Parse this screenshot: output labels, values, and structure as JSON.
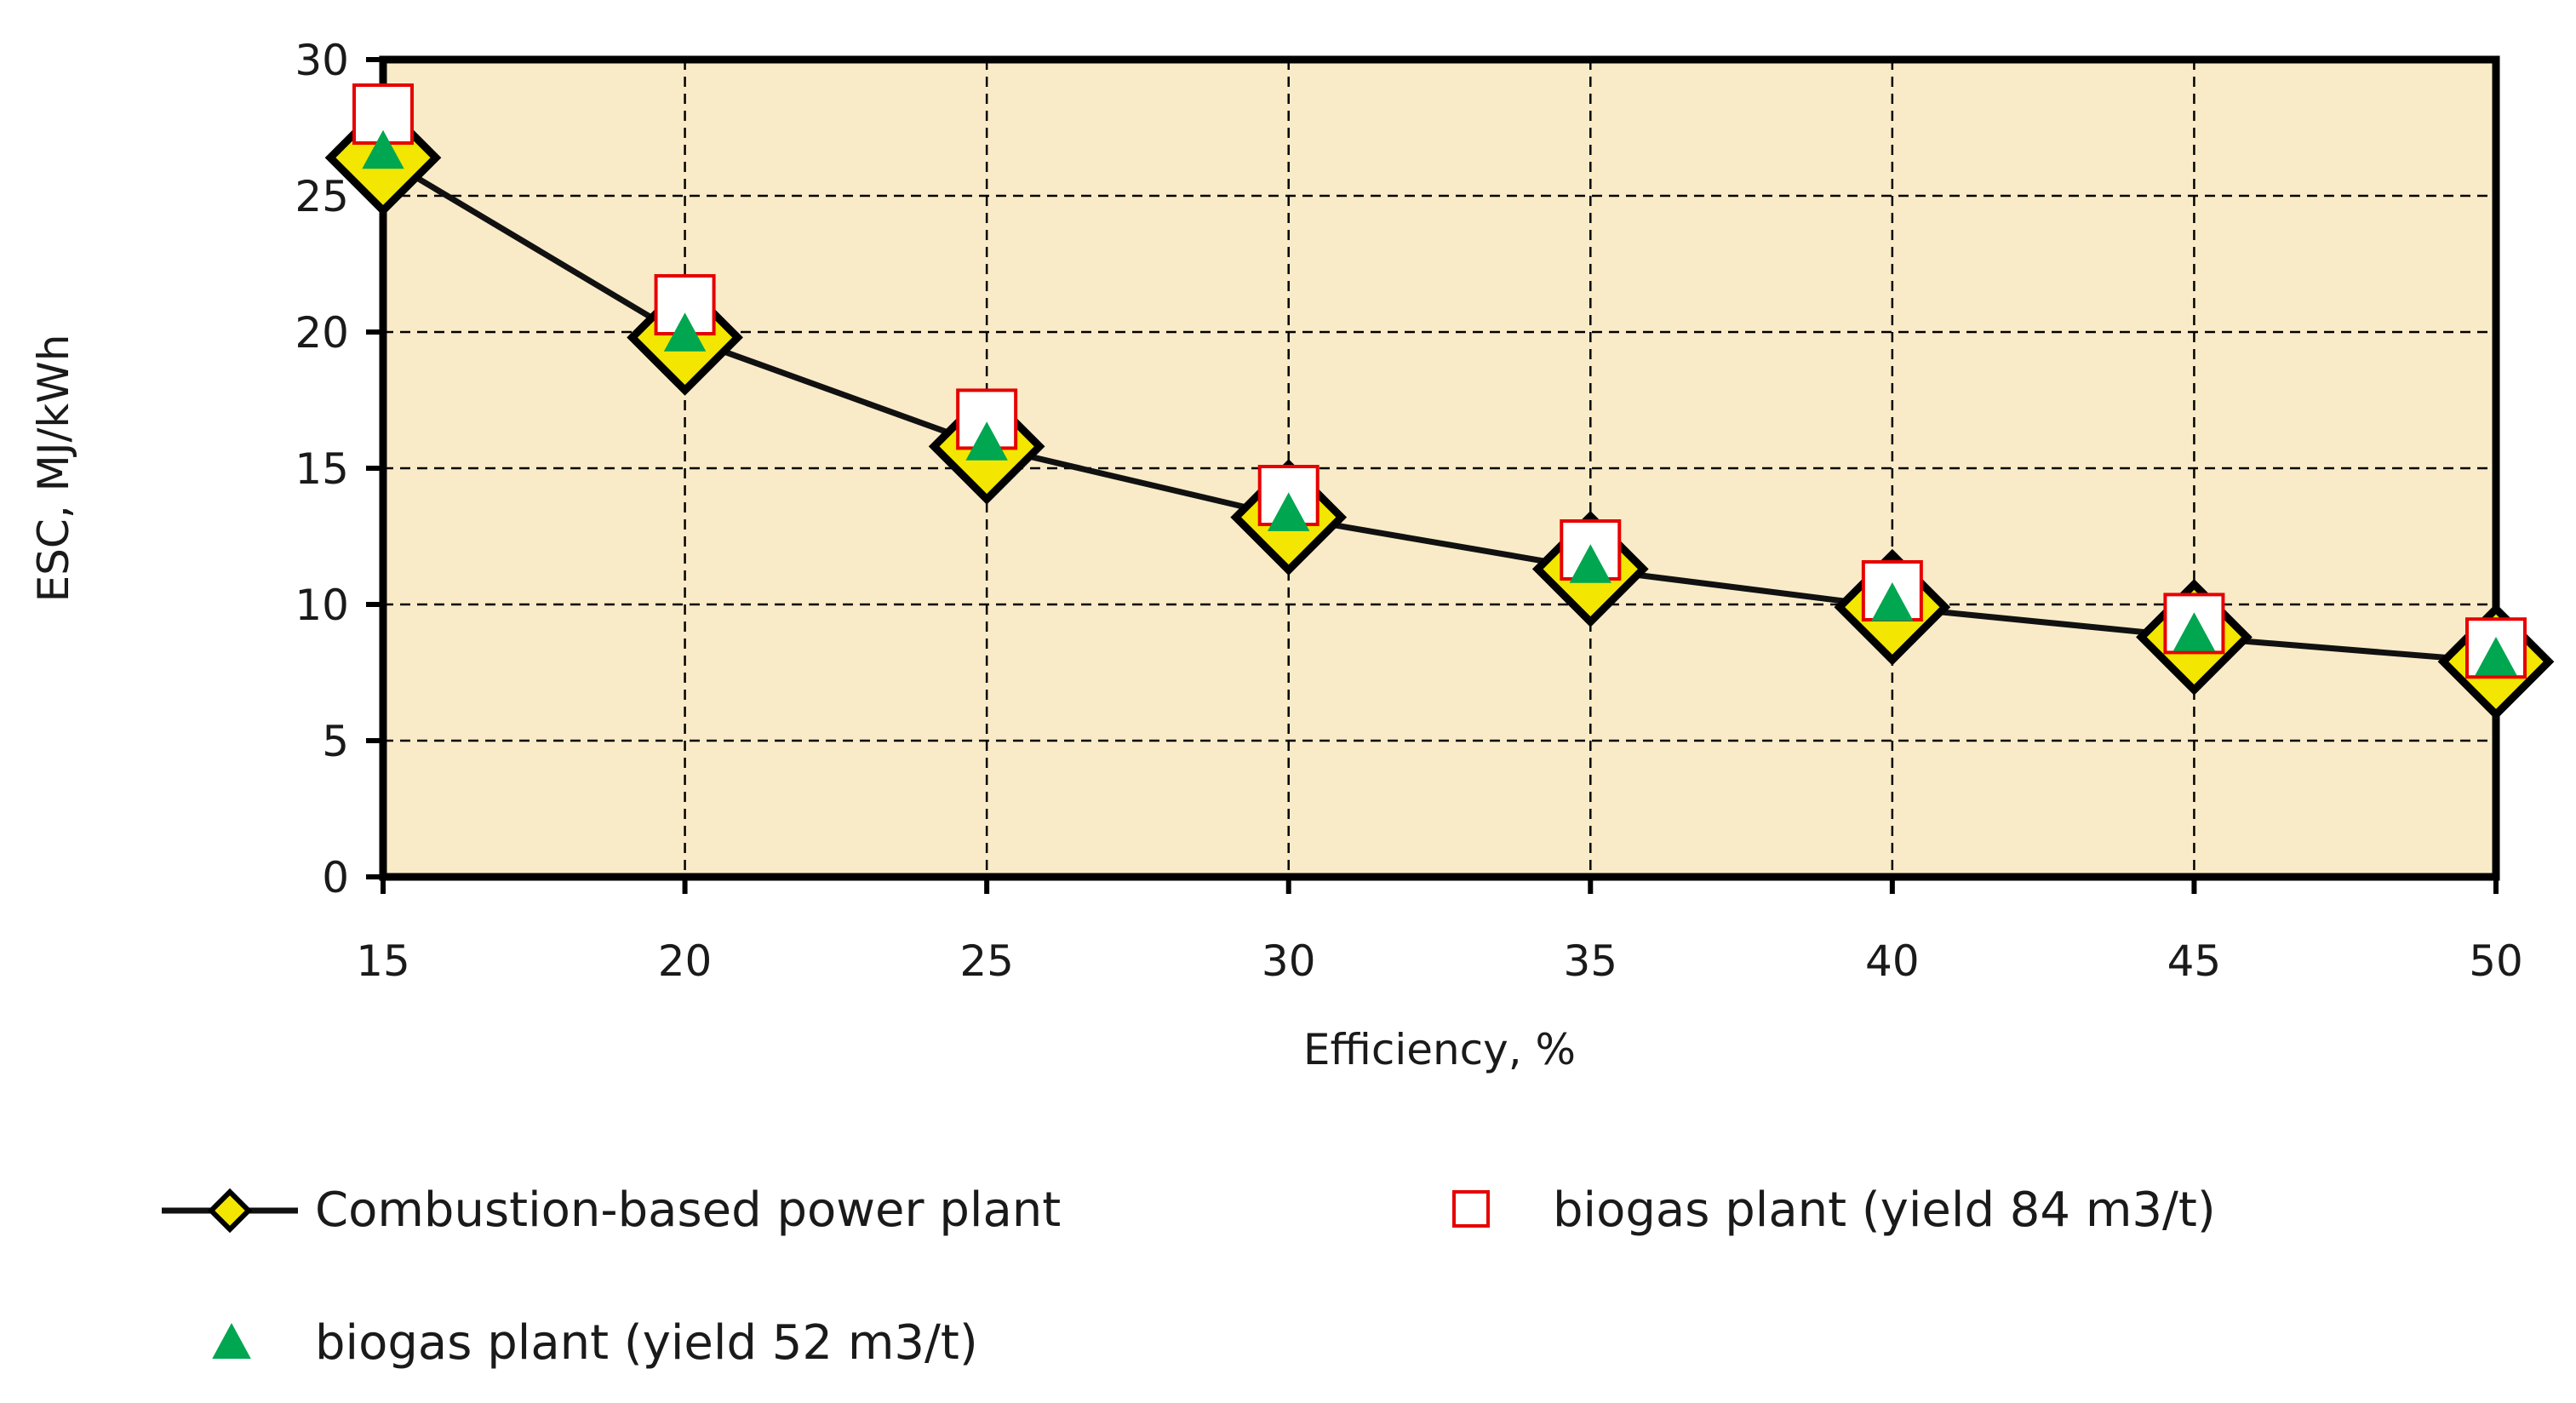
{
  "chart_data": {
    "type": "line",
    "title": "",
    "xlabel": "Efficiency, %",
    "ylabel": "ESC, MJ/kWh",
    "x": [
      15,
      20,
      25,
      30,
      35,
      40,
      45,
      50
    ],
    "xlim": [
      15,
      50
    ],
    "ylim": [
      0,
      30
    ],
    "xticks": [
      15,
      20,
      25,
      30,
      35,
      40,
      45,
      50
    ],
    "yticks": [
      0,
      5,
      10,
      15,
      20,
      25,
      30
    ],
    "grid": true,
    "legend_position": "bottom",
    "series": [
      {
        "name": "Combustion-based power plant",
        "marker": "diamond",
        "line": true,
        "values": [
          26.4,
          19.8,
          15.8,
          13.2,
          11.3,
          9.9,
          8.8,
          7.9
        ]
      },
      {
        "name": "biogas plant (yield 84 m3/t)",
        "marker": "square",
        "line": false,
        "values": [
          28.0,
          21.0,
          16.8,
          14.0,
          12.0,
          10.5,
          9.3,
          8.4
        ]
      },
      {
        "name": "biogas plant (yield 52 m3/t)",
        "marker": "triangle",
        "line": false,
        "values": [
          26.6,
          19.9,
          15.9,
          13.3,
          11.4,
          10.0,
          8.9,
          8.0
        ]
      }
    ]
  },
  "colors": {
    "plot_background": "#faebc8",
    "diamond_fill": "#f3e600",
    "square_edge": "#e60000",
    "triangle_fill": "#00a650",
    "axis": "#000000",
    "grid": "#000000"
  }
}
